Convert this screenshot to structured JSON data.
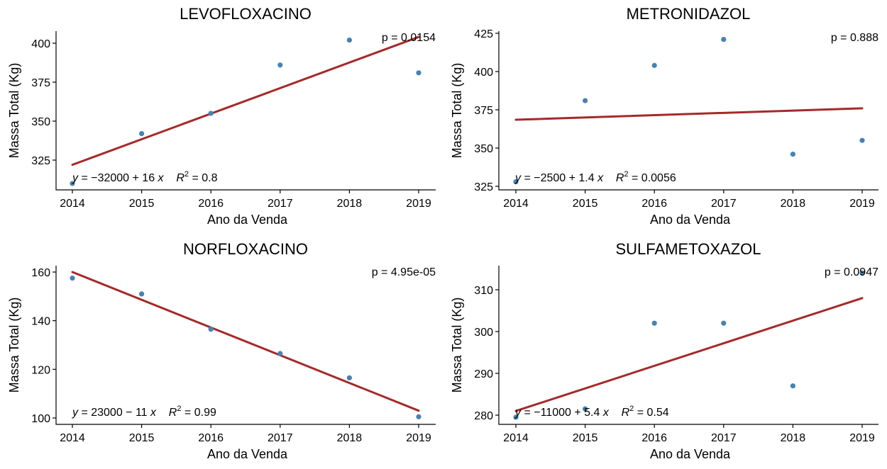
{
  "chart_data": [
    {
      "type": "scatter",
      "title": "LEVOFLOXACINO",
      "xlabel": "Ano da Venda",
      "ylabel": "Massa Total (Kg)",
      "xlim": [
        2014,
        2019
      ],
      "ylim": [
        310,
        402
      ],
      "xticks": [
        2014,
        2015,
        2016,
        2017,
        2018,
        2019
      ],
      "yticks": [
        325,
        350,
        375,
        400
      ],
      "x": [
        2014,
        2015,
        2016,
        2017,
        2018,
        2019
      ],
      "y": [
        310,
        342,
        355,
        386,
        402,
        381
      ],
      "trend": {
        "x": [
          2014,
          2019
        ],
        "y": [
          322,
          404
        ]
      },
      "equation": {
        "y": "y",
        "eq": " = −32000 + 16 ",
        "x": "x",
        "r": "R",
        "exp": "2",
        "rval": " = 0.8"
      },
      "pvalue": "p = 0.0154",
      "point_color": "#4682B4",
      "line_color": "#A52A2A",
      "grid": false
    },
    {
      "type": "scatter",
      "title": "METRONIDAZOL",
      "xlabel": "Ano da Venda",
      "ylabel": "Massa Total (Kg)",
      "xlim": [
        2014,
        2019
      ],
      "ylim": [
        328,
        421
      ],
      "xticks": [
        2014,
        2015,
        2016,
        2017,
        2018,
        2019
      ],
      "yticks": [
        325,
        350,
        375,
        400,
        425
      ],
      "x": [
        2014,
        2015,
        2016,
        2017,
        2018,
        2019
      ],
      "y": [
        328,
        381,
        404,
        421,
        346,
        355
      ],
      "trend": {
        "x": [
          2014,
          2019
        ],
        "y": [
          368.5,
          376
        ]
      },
      "equation": {
        "y": "y",
        "eq": " = −2500 + 1.4 ",
        "x": "x",
        "r": "R",
        "exp": "2",
        "rval": " = 0.0056"
      },
      "pvalue": "p = 0.888",
      "point_color": "#4682B4",
      "line_color": "#A52A2A",
      "grid": false
    },
    {
      "type": "scatter",
      "title": "NORFLOXACINO",
      "xlabel": "Ano da Venda",
      "ylabel": "Massa Total (Kg)",
      "xlim": [
        2014,
        2019
      ],
      "ylim": [
        100,
        158
      ],
      "xticks": [
        2014,
        2015,
        2016,
        2017,
        2018,
        2019
      ],
      "yticks": [
        100,
        120,
        140,
        160
      ],
      "x": [
        2014,
        2015,
        2016,
        2017,
        2018,
        2019
      ],
      "y": [
        157.5,
        151,
        136.5,
        126.5,
        116.5,
        100.5
      ],
      "trend": {
        "x": [
          2014,
          2019
        ],
        "y": [
          160,
          103
        ]
      },
      "equation": {
        "y": "y",
        "eq": " = 23000 − 11 ",
        "x": "x",
        "r": "R",
        "exp": "2",
        "rval": " = 0.99"
      },
      "pvalue": "p = 4.95e-05",
      "point_color": "#4682B4",
      "line_color": "#A52A2A",
      "grid": false
    },
    {
      "type": "scatter",
      "title": "SULFAMETOXAZOL",
      "xlabel": "Ano da Venda",
      "ylabel": "Massa Total (Kg)",
      "xlim": [
        2014,
        2019
      ],
      "ylim": [
        279.5,
        314
      ],
      "xticks": [
        2014,
        2015,
        2016,
        2017,
        2018,
        2019
      ],
      "yticks": [
        280,
        290,
        300,
        310
      ],
      "x": [
        2014,
        2015,
        2016,
        2017,
        2018,
        2019
      ],
      "y": [
        279.5,
        281.5,
        302,
        302,
        287,
        314
      ],
      "trend": {
        "x": [
          2014,
          2019
        ],
        "y": [
          281,
          308
        ]
      },
      "equation": {
        "y": "y",
        "eq": " = −11000 + 5.4 ",
        "x": "x",
        "r": "R",
        "exp": "2",
        "rval": " = 0.54"
      },
      "pvalue": "p = 0.0947",
      "point_color": "#4682B4",
      "line_color": "#A52A2A",
      "grid": false
    }
  ]
}
